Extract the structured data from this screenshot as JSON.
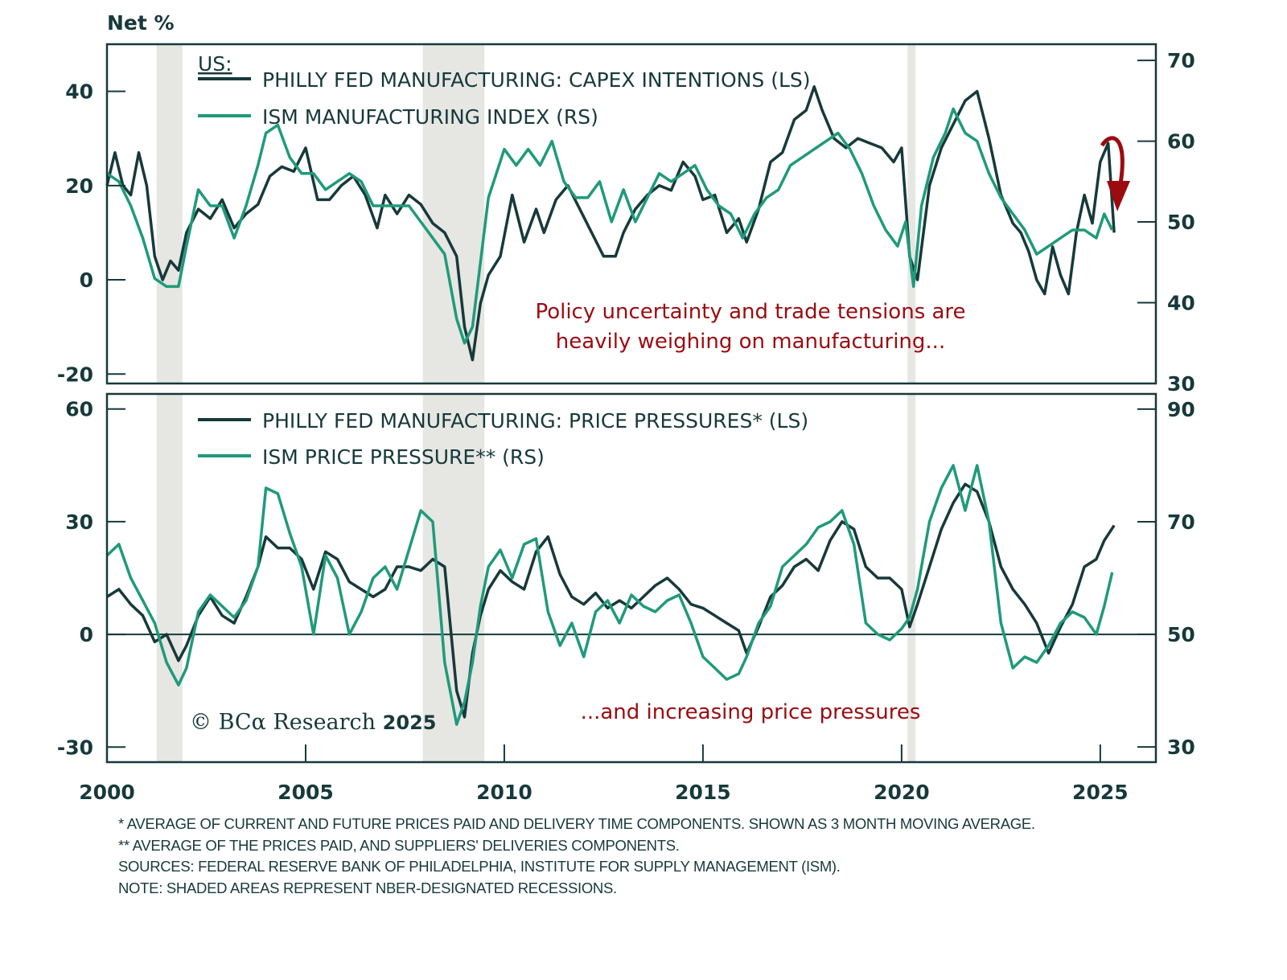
{
  "chart_data": [
    {
      "type": "line",
      "panel": "top",
      "ylabel_left": "Net %",
      "legend_title": "US:",
      "legend_position": "top-left",
      "x_range": [
        2000,
        2026.4
      ],
      "x_ticks": [
        2000,
        2005,
        2010,
        2015,
        2020,
        2025
      ],
      "ylim_left": [
        -22,
        50
      ],
      "ylim_right": [
        30,
        72
      ],
      "yticks_left": [
        -20,
        0,
        20,
        40
      ],
      "yticks_right": [
        30,
        40,
        50,
        60,
        70
      ],
      "recessions": [
        [
          2001.25,
          2001.9
        ],
        [
          2007.95,
          2009.5
        ],
        [
          2020.15,
          2020.35
        ]
      ],
      "annotation": [
        "Policy uncertainty and trade tensions are",
        "heavily weighing on manufacturing..."
      ],
      "arrow": "down-turn",
      "series": [
        {
          "name": "PHILLY FED MANUFACTURING: CAPEX INTENTIONS (LS)",
          "axis": "left",
          "color": "#17393b",
          "x": [
            2000.0,
            2000.2,
            2000.4,
            2000.6,
            2000.8,
            2001.0,
            2001.2,
            2001.4,
            2001.6,
            2001.8,
            2002.0,
            2002.3,
            2002.6,
            2002.9,
            2003.2,
            2003.5,
            2003.8,
            2004.1,
            2004.4,
            2004.7,
            2005.0,
            2005.3,
            2005.6,
            2005.9,
            2006.2,
            2006.5,
            2006.8,
            2007.0,
            2007.3,
            2007.6,
            2007.9,
            2008.2,
            2008.5,
            2008.8,
            2009.0,
            2009.2,
            2009.4,
            2009.6,
            2009.9,
            2010.2,
            2010.5,
            2010.8,
            2011.0,
            2011.3,
            2011.6,
            2011.9,
            2012.2,
            2012.5,
            2012.8,
            2013.0,
            2013.3,
            2013.6,
            2013.9,
            2014.2,
            2014.5,
            2014.8,
            2015.0,
            2015.3,
            2015.6,
            2015.9,
            2016.1,
            2016.4,
            2016.7,
            2017.0,
            2017.3,
            2017.6,
            2017.8,
            2018.0,
            2018.3,
            2018.6,
            2018.9,
            2019.2,
            2019.5,
            2019.8,
            2020.0,
            2020.2,
            2020.4,
            2020.7,
            2021.0,
            2021.3,
            2021.6,
            2021.9,
            2022.2,
            2022.5,
            2022.8,
            2023.0,
            2023.2,
            2023.4,
            2023.6,
            2023.8,
            2024.0,
            2024.2,
            2024.4,
            2024.6,
            2024.8,
            2025.0,
            2025.2,
            2025.35
          ],
          "y": [
            20,
            27,
            20,
            18,
            27,
            20,
            5,
            0,
            4,
            2,
            10,
            15,
            13,
            17,
            11,
            14,
            16,
            22,
            24,
            23,
            28,
            17,
            17,
            20,
            22,
            18,
            11,
            18,
            14,
            18,
            16,
            12,
            10,
            5,
            -10,
            -17,
            -5,
            1,
            5,
            18,
            8,
            15,
            10,
            17,
            20,
            15,
            10,
            5,
            5,
            10,
            15,
            18,
            20,
            19,
            25,
            22,
            17,
            18,
            10,
            13,
            8,
            15,
            25,
            27,
            34,
            36,
            41,
            36,
            30,
            28,
            30,
            29,
            28,
            25,
            28,
            5,
            0,
            20,
            28,
            33,
            38,
            40,
            30,
            18,
            12,
            10,
            6,
            0,
            -3,
            7,
            1,
            -3,
            10,
            18,
            12,
            25,
            29,
            10
          ]
        },
        {
          "name": "ISM MANUFACTURING INDEX (RS)",
          "axis": "right",
          "color": "#1f9a7a",
          "x": [
            2000.0,
            2000.3,
            2000.6,
            2000.9,
            2001.2,
            2001.5,
            2001.8,
            2002.0,
            2002.3,
            2002.6,
            2002.9,
            2003.2,
            2003.5,
            2003.8,
            2004.0,
            2004.3,
            2004.6,
            2004.9,
            2005.2,
            2005.5,
            2005.8,
            2006.1,
            2006.4,
            2006.7,
            2007.0,
            2007.3,
            2007.6,
            2007.9,
            2008.2,
            2008.5,
            2008.8,
            2009.0,
            2009.2,
            2009.4,
            2009.6,
            2009.8,
            2010.0,
            2010.3,
            2010.6,
            2010.9,
            2011.2,
            2011.5,
            2011.8,
            2012.1,
            2012.4,
            2012.7,
            2013.0,
            2013.3,
            2013.6,
            2013.9,
            2014.2,
            2014.5,
            2014.8,
            2015.1,
            2015.4,
            2015.7,
            2016.0,
            2016.3,
            2016.6,
            2016.9,
            2017.2,
            2017.5,
            2017.8,
            2018.1,
            2018.4,
            2018.7,
            2019.0,
            2019.3,
            2019.6,
            2019.9,
            2020.1,
            2020.3,
            2020.5,
            2020.8,
            2021.1,
            2021.3,
            2021.6,
            2021.9,
            2022.2,
            2022.5,
            2022.8,
            2023.1,
            2023.4,
            2023.7,
            2024.0,
            2024.3,
            2024.6,
            2024.9,
            2025.1,
            2025.3
          ],
          "y": [
            56,
            55,
            52,
            48,
            43,
            42,
            42,
            47,
            54,
            52,
            52,
            48,
            52,
            57,
            61,
            62,
            58,
            56,
            56,
            54,
            55,
            56,
            55,
            52,
            52,
            52,
            52,
            50,
            48,
            46,
            38,
            35,
            37,
            45,
            53,
            56,
            59,
            57,
            59,
            57,
            60,
            55,
            53,
            53,
            55,
            50,
            54,
            50,
            53,
            56,
            55,
            56,
            57,
            54,
            52,
            51,
            48,
            51,
            53,
            54,
            57,
            58,
            59,
            60,
            61,
            59,
            56,
            52,
            49,
            47,
            50,
            42,
            52,
            58,
            61,
            64,
            61,
            60,
            56,
            53,
            51,
            49,
            46,
            47,
            48,
            49,
            49,
            48,
            51,
            49
          ]
        }
      ]
    },
    {
      "type": "line",
      "panel": "bottom",
      "legend_position": "top-left",
      "x_range": [
        2000,
        2026.4
      ],
      "x_ticks": [
        2000,
        2005,
        2010,
        2015,
        2020,
        2025
      ],
      "ylim_left": [
        -34,
        64
      ],
      "ylim_right": [
        27.3,
        92.7
      ],
      "yticks_left": [
        -30,
        0,
        30,
        60
      ],
      "yticks_right": [
        30,
        50,
        70,
        90
      ],
      "zero_line": true,
      "recessions": [
        [
          2001.25,
          2001.9
        ],
        [
          2007.95,
          2009.5
        ],
        [
          2020.15,
          2020.35
        ]
      ],
      "annotation": [
        "...and increasing price pressures"
      ],
      "series": [
        {
          "name": "PHILLY FED MANUFACTURING: PRICE PRESSURES* (LS)",
          "axis": "left",
          "color": "#17393b",
          "x": [
            2000.0,
            2000.3,
            2000.6,
            2000.9,
            2001.2,
            2001.5,
            2001.8,
            2002.0,
            2002.3,
            2002.6,
            2002.9,
            2003.2,
            2003.5,
            2003.8,
            2004.0,
            2004.3,
            2004.6,
            2004.9,
            2005.2,
            2005.5,
            2005.8,
            2006.1,
            2006.4,
            2006.7,
            2007.0,
            2007.3,
            2007.6,
            2007.9,
            2008.2,
            2008.5,
            2008.8,
            2009.0,
            2009.2,
            2009.4,
            2009.6,
            2009.9,
            2010.2,
            2010.5,
            2010.8,
            2011.1,
            2011.4,
            2011.7,
            2012.0,
            2012.3,
            2012.6,
            2012.9,
            2013.2,
            2013.5,
            2013.8,
            2014.1,
            2014.4,
            2014.7,
            2015.0,
            2015.3,
            2015.6,
            2015.9,
            2016.1,
            2016.4,
            2016.7,
            2017.0,
            2017.3,
            2017.6,
            2017.9,
            2018.2,
            2018.5,
            2018.8,
            2019.1,
            2019.4,
            2019.7,
            2020.0,
            2020.2,
            2020.4,
            2020.7,
            2021.0,
            2021.3,
            2021.6,
            2021.9,
            2022.2,
            2022.5,
            2022.8,
            2023.1,
            2023.4,
            2023.7,
            2024.0,
            2024.3,
            2024.6,
            2024.9,
            2025.1,
            2025.35
          ],
          "y": [
            10,
            12,
            8,
            5,
            -2,
            0,
            -7,
            -3,
            5,
            10,
            5,
            3,
            10,
            18,
            26,
            23,
            23,
            20,
            12,
            22,
            20,
            14,
            12,
            10,
            12,
            18,
            18,
            17,
            20,
            18,
            -15,
            -22,
            -5,
            5,
            12,
            17,
            14,
            12,
            22,
            26,
            16,
            10,
            8,
            11,
            7,
            9,
            7,
            10,
            13,
            15,
            12,
            8,
            7,
            5,
            3,
            1,
            -5,
            2,
            10,
            13,
            18,
            20,
            17,
            25,
            30,
            28,
            18,
            15,
            15,
            12,
            2,
            8,
            18,
            28,
            35,
            40,
            38,
            30,
            18,
            12,
            8,
            3,
            -5,
            2,
            8,
            18,
            20,
            25,
            29
          ]
        },
        {
          "name": "ISM PRICE PRESSURE** (RS)",
          "axis": "right",
          "color": "#1f9a7a",
          "x": [
            2000.0,
            2000.3,
            2000.6,
            2000.9,
            2001.2,
            2001.5,
            2001.8,
            2002.0,
            2002.3,
            2002.6,
            2002.9,
            2003.2,
            2003.5,
            2003.8,
            2004.0,
            2004.3,
            2004.6,
            2004.9,
            2005.2,
            2005.5,
            2005.8,
            2006.1,
            2006.4,
            2006.7,
            2007.0,
            2007.3,
            2007.6,
            2007.9,
            2008.2,
            2008.5,
            2008.8,
            2009.0,
            2009.2,
            2009.4,
            2009.6,
            2009.9,
            2010.2,
            2010.5,
            2010.8,
            2011.1,
            2011.4,
            2011.7,
            2012.0,
            2012.3,
            2012.6,
            2012.9,
            2013.2,
            2013.5,
            2013.8,
            2014.1,
            2014.4,
            2014.7,
            2015.0,
            2015.3,
            2015.6,
            2015.9,
            2016.1,
            2016.4,
            2016.7,
            2017.0,
            2017.3,
            2017.6,
            2017.9,
            2018.2,
            2018.5,
            2018.8,
            2019.1,
            2019.4,
            2019.7,
            2020.0,
            2020.2,
            2020.4,
            2020.7,
            2021.0,
            2021.3,
            2021.6,
            2021.9,
            2022.2,
            2022.5,
            2022.8,
            2023.1,
            2023.4,
            2023.7,
            2024.0,
            2024.3,
            2024.6,
            2024.9,
            2025.1,
            2025.3
          ],
          "y": [
            64,
            66,
            60,
            56,
            52,
            45,
            41,
            44,
            54,
            57,
            55,
            53,
            56,
            62,
            76,
            75,
            68,
            62,
            50,
            64,
            60,
            50,
            54,
            60,
            62,
            58,
            65,
            72,
            70,
            45,
            34,
            38,
            45,
            55,
            62,
            65,
            60,
            66,
            67,
            54,
            48,
            52,
            46,
            54,
            56,
            52,
            57,
            55,
            54,
            56,
            57,
            52,
            46,
            44,
            42,
            43,
            46,
            52,
            55,
            62,
            64,
            66,
            69,
            70,
            72,
            66,
            52,
            50,
            49,
            51,
            53,
            58,
            70,
            76,
            80,
            72,
            80,
            70,
            52,
            44,
            46,
            45,
            48,
            52,
            54,
            53,
            50,
            55,
            61
          ]
        }
      ]
    }
  ],
  "header": {
    "unit_label": "Net %"
  },
  "legend_top": {
    "title": "US:",
    "items": [
      "PHILLY FED MANUFACTURING: CAPEX INTENTIONS (LS)",
      "ISM MANUFACTURING INDEX (RS)"
    ]
  },
  "legend_bottom": {
    "items": [
      "PHILLY FED MANUFACTURING: PRICE PRESSURES* (LS)",
      "ISM PRICE PRESSURE** (RS)"
    ]
  },
  "annotations": {
    "top_line1": "Policy uncertainty and trade tensions are",
    "top_line2": "heavily weighing on manufacturing...",
    "bottom": "...and increasing price pressures"
  },
  "copyright": {
    "symbol": "©",
    "brand": "BCα Research",
    "year": "2025"
  },
  "footnotes": [
    "* AVERAGE OF CURRENT AND FUTURE PRICES PAID AND DELIVERY TIME COMPONENTS. SHOWN AS 3 MONTH MOVING AVERAGE.",
    "** AVERAGE OF THE PRICES PAID, AND SUPPLIERS' DELIVERIES COMPONENTS.",
    "SOURCES: FEDERAL RESERVE BANK OF PHILADELPHIA, INSTITUTE FOR SUPPLY MANAGEMENT (ISM).",
    "NOTE: SHADED AREAS REPRESENT NBER-DESIGNATED RECESSIONS."
  ],
  "colors": {
    "dark": "#17393b",
    "green": "#1f9a7a",
    "red": "#9b0b10",
    "recession": "#e6e6e3"
  }
}
